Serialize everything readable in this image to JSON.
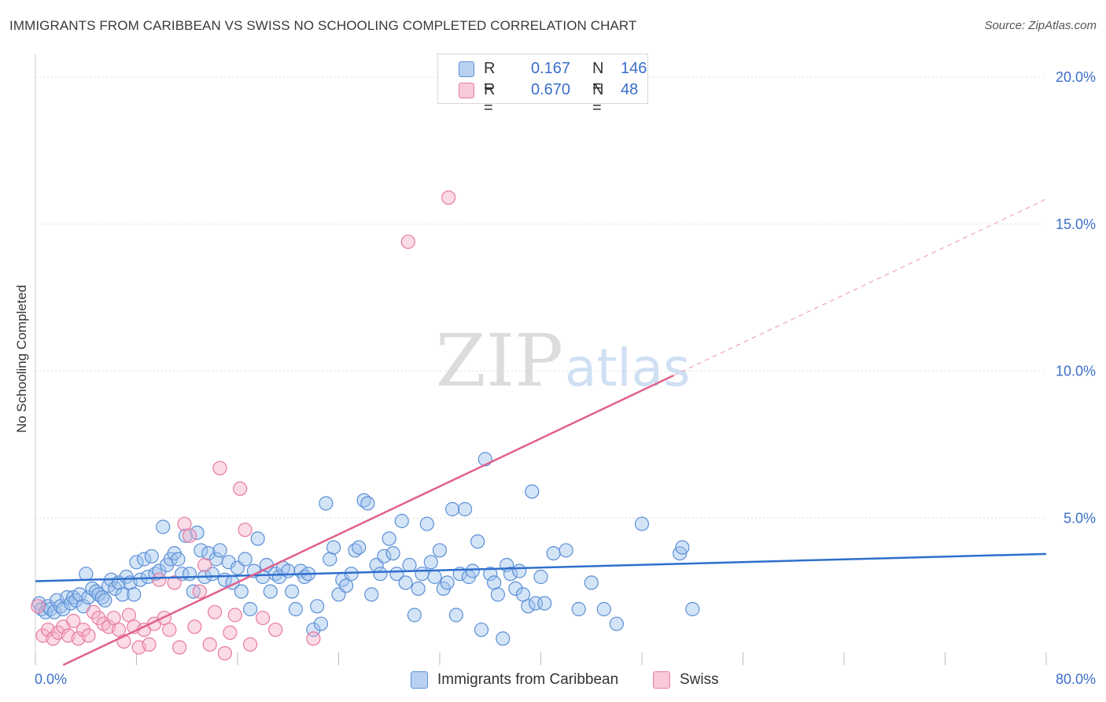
{
  "header": {
    "title": "IMMIGRANTS FROM CARIBBEAN VS SWISS NO SCHOOLING COMPLETED CORRELATION CHART",
    "source": "Source: ZipAtlas.com"
  },
  "watermark": {
    "zip": "ZIP",
    "atlas": "atlas"
  },
  "legend": {
    "rows": [
      {
        "r_label": "R =",
        "r_value": "0.167",
        "n_label": "N =",
        "n_value": "146",
        "color": "#5b8fd6"
      },
      {
        "r_label": "R =",
        "r_value": "0.670",
        "n_label": "N =",
        "n_value": "48",
        "color": "#e87ba0"
      }
    ]
  },
  "chart_data": {
    "type": "scatter",
    "title": "IMMIGRANTS FROM CARIBBEAN VS SWISS NO SCHOOLING COMPLETED CORRELATION CHART",
    "xlabel": "",
    "ylabel": "No Schooling Completed",
    "xlim": [
      0,
      80
    ],
    "ylim": [
      0,
      20
    ],
    "x_tick_labels": [
      "0.0%",
      "80.0%"
    ],
    "y_tick_labels": [
      "5.0%",
      "10.0%",
      "15.0%",
      "20.0%"
    ],
    "y_ticks": [
      5,
      10,
      15,
      20
    ],
    "grid": true,
    "legend_position": "top-center",
    "series": [
      {
        "name": "Immigrants from Caribbean",
        "color": "#5b8fd6",
        "trend": {
          "x": [
            0,
            80
          ],
          "y": [
            2.85,
            3.78
          ],
          "dashed_extension": false
        },
        "points": [
          [
            0.3,
            2.1
          ],
          [
            0.5,
            1.9
          ],
          [
            0.8,
            1.8
          ],
          [
            1.0,
            2.0
          ],
          [
            1.2,
            1.9
          ],
          [
            1.5,
            1.8
          ],
          [
            1.7,
            2.2
          ],
          [
            2.0,
            2.0
          ],
          [
            2.2,
            1.9
          ],
          [
            2.5,
            2.3
          ],
          [
            2.8,
            2.1
          ],
          [
            3.0,
            2.3
          ],
          [
            3.2,
            2.2
          ],
          [
            3.5,
            2.4
          ],
          [
            3.8,
            2.0
          ],
          [
            4.0,
            3.1
          ],
          [
            4.2,
            2.3
          ],
          [
            4.5,
            2.6
          ],
          [
            4.8,
            2.5
          ],
          [
            5.0,
            2.4
          ],
          [
            5.3,
            2.3
          ],
          [
            5.5,
            2.2
          ],
          [
            5.8,
            2.7
          ],
          [
            6.0,
            2.9
          ],
          [
            6.3,
            2.6
          ],
          [
            6.6,
            2.8
          ],
          [
            6.9,
            2.4
          ],
          [
            7.2,
            3.0
          ],
          [
            7.5,
            2.8
          ],
          [
            7.8,
            2.4
          ],
          [
            8.0,
            3.5
          ],
          [
            8.3,
            2.9
          ],
          [
            8.6,
            3.6
          ],
          [
            8.9,
            3.0
          ],
          [
            9.2,
            3.7
          ],
          [
            9.5,
            3.1
          ],
          [
            9.8,
            3.2
          ],
          [
            10.1,
            4.7
          ],
          [
            10.4,
            3.4
          ],
          [
            10.7,
            3.6
          ],
          [
            11.0,
            3.8
          ],
          [
            11.3,
            3.6
          ],
          [
            11.6,
            3.1
          ],
          [
            11.9,
            4.4
          ],
          [
            12.2,
            3.1
          ],
          [
            12.5,
            2.5
          ],
          [
            12.8,
            4.5
          ],
          [
            13.1,
            3.9
          ],
          [
            13.4,
            3.0
          ],
          [
            13.7,
            3.8
          ],
          [
            14.0,
            3.1
          ],
          [
            14.3,
            3.6
          ],
          [
            14.6,
            3.9
          ],
          [
            15.0,
            2.9
          ],
          [
            15.3,
            3.5
          ],
          [
            15.6,
            2.8
          ],
          [
            16.0,
            3.3
          ],
          [
            16.3,
            2.5
          ],
          [
            16.6,
            3.6
          ],
          [
            17.0,
            1.9
          ],
          [
            17.3,
            3.2
          ],
          [
            17.6,
            4.3
          ],
          [
            18.0,
            3.0
          ],
          [
            18.3,
            3.4
          ],
          [
            18.6,
            2.5
          ],
          [
            19.0,
            3.1
          ],
          [
            19.3,
            3.0
          ],
          [
            19.6,
            3.3
          ],
          [
            20.0,
            3.2
          ],
          [
            20.3,
            2.5
          ],
          [
            20.6,
            1.9
          ],
          [
            21.0,
            3.2
          ],
          [
            21.3,
            3.0
          ],
          [
            21.6,
            3.1
          ],
          [
            22.0,
            1.2
          ],
          [
            22.3,
            2.0
          ],
          [
            22.6,
            1.4
          ],
          [
            23.0,
            5.5
          ],
          [
            23.3,
            3.6
          ],
          [
            23.6,
            4.0
          ],
          [
            24.0,
            2.4
          ],
          [
            24.3,
            2.9
          ],
          [
            24.6,
            2.7
          ],
          [
            25.0,
            3.1
          ],
          [
            25.3,
            3.9
          ],
          [
            25.6,
            4.0
          ],
          [
            26.0,
            5.6
          ],
          [
            26.3,
            5.5
          ],
          [
            26.6,
            2.4
          ],
          [
            27.0,
            3.4
          ],
          [
            27.3,
            3.1
          ],
          [
            27.6,
            3.7
          ],
          [
            28.0,
            4.3
          ],
          [
            28.3,
            3.8
          ],
          [
            28.6,
            3.1
          ],
          [
            29.0,
            4.9
          ],
          [
            29.3,
            2.8
          ],
          [
            29.6,
            3.4
          ],
          [
            30.0,
            1.7
          ],
          [
            30.3,
            2.6
          ],
          [
            30.6,
            3.1
          ],
          [
            31.0,
            4.8
          ],
          [
            31.3,
            3.5
          ],
          [
            31.6,
            3.0
          ],
          [
            32.0,
            3.9
          ],
          [
            32.3,
            2.6
          ],
          [
            32.6,
            2.8
          ],
          [
            33.0,
            5.3
          ],
          [
            33.3,
            1.7
          ],
          [
            33.6,
            3.1
          ],
          [
            34.0,
            5.3
          ],
          [
            34.3,
            3.0
          ],
          [
            34.6,
            3.2
          ],
          [
            35.0,
            4.2
          ],
          [
            35.3,
            1.2
          ],
          [
            35.6,
            7.0
          ],
          [
            36.0,
            3.1
          ],
          [
            36.3,
            2.8
          ],
          [
            36.6,
            2.4
          ],
          [
            37.0,
            0.9
          ],
          [
            37.3,
            3.4
          ],
          [
            37.6,
            3.1
          ],
          [
            38.0,
            2.6
          ],
          [
            38.3,
            3.2
          ],
          [
            38.6,
            2.4
          ],
          [
            39.0,
            2.0
          ],
          [
            39.3,
            5.9
          ],
          [
            39.6,
            2.1
          ],
          [
            40.0,
            3.0
          ],
          [
            40.3,
            2.1
          ],
          [
            41.0,
            3.8
          ],
          [
            42.0,
            3.9
          ],
          [
            43.0,
            1.9
          ],
          [
            44.0,
            2.8
          ],
          [
            45.0,
            1.9
          ],
          [
            46.0,
            1.4
          ],
          [
            48.0,
            4.8
          ],
          [
            51.0,
            3.8
          ],
          [
            51.2,
            4.0
          ],
          [
            52.0,
            1.9
          ]
        ]
      },
      {
        "name": "Swiss",
        "color": "#e87ba0",
        "trend": {
          "x": [
            2.2,
            50.5
          ],
          "y": [
            0.0,
            9.85
          ],
          "dashed_to": [
            80.0,
            15.85
          ]
        },
        "points": [
          [
            0.2,
            2.0
          ],
          [
            0.6,
            1.0
          ],
          [
            1.0,
            1.2
          ],
          [
            1.4,
            0.9
          ],
          [
            1.8,
            1.1
          ],
          [
            2.2,
            1.3
          ],
          [
            2.6,
            1.0
          ],
          [
            3.0,
            1.5
          ],
          [
            3.4,
            0.9
          ],
          [
            3.8,
            1.2
          ],
          [
            4.2,
            1.0
          ],
          [
            4.6,
            1.8
          ],
          [
            5.0,
            1.6
          ],
          [
            5.4,
            1.4
          ],
          [
            5.8,
            1.3
          ],
          [
            6.2,
            1.6
          ],
          [
            6.6,
            1.2
          ],
          [
            7.0,
            0.8
          ],
          [
            7.4,
            1.7
          ],
          [
            7.8,
            1.3
          ],
          [
            8.2,
            0.6
          ],
          [
            8.6,
            1.2
          ],
          [
            9.0,
            0.7
          ],
          [
            9.4,
            1.4
          ],
          [
            9.8,
            2.9
          ],
          [
            10.2,
            1.6
          ],
          [
            10.6,
            1.2
          ],
          [
            11.0,
            2.8
          ],
          [
            11.4,
            0.6
          ],
          [
            11.8,
            4.8
          ],
          [
            12.2,
            4.4
          ],
          [
            12.6,
            1.3
          ],
          [
            13.0,
            2.5
          ],
          [
            13.4,
            3.4
          ],
          [
            13.8,
            0.7
          ],
          [
            14.2,
            1.8
          ],
          [
            14.6,
            6.7
          ],
          [
            15.0,
            0.4
          ],
          [
            15.4,
            1.1
          ],
          [
            15.8,
            1.7
          ],
          [
            16.2,
            6.0
          ],
          [
            16.6,
            4.6
          ],
          [
            17.0,
            0.7
          ],
          [
            18.0,
            1.6
          ],
          [
            19.0,
            1.2
          ],
          [
            22.0,
            0.9
          ],
          [
            29.5,
            14.4
          ],
          [
            32.7,
            15.9
          ]
        ]
      }
    ]
  },
  "bottom_legend": {
    "items": [
      {
        "label": "Immigrants from Caribbean",
        "color": "#5b8fd6"
      },
      {
        "label": "Swiss",
        "color": "#e87ba0"
      }
    ]
  }
}
